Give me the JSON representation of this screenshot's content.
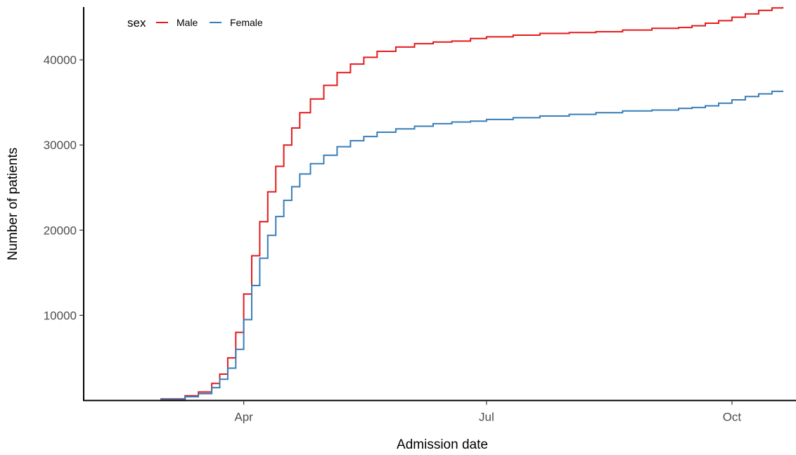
{
  "chart_data": {
    "type": "line",
    "step": true,
    "xlabel": "Admission date",
    "ylabel": "Number of patients",
    "x_tick_labels": [
      "Apr",
      "Jul",
      "Oct"
    ],
    "x_tick_dates": [
      "2020-04-01",
      "2020-07-01",
      "2020-10-01"
    ],
    "x_range": [
      "2020-02-01",
      "2020-10-25"
    ],
    "y_ticks": [
      10000,
      20000,
      30000,
      40000
    ],
    "y_tick_labels": [
      "10000",
      "20000",
      "30000",
      "40000"
    ],
    "ylim": [
      0,
      46200
    ],
    "grid": false,
    "legend": {
      "title": "sex",
      "position": "top-left",
      "entries": [
        "Male",
        "Female"
      ]
    },
    "series": [
      {
        "name": "Male",
        "color": "#e41a1c",
        "x": [
          "2020-02-15",
          "2020-03-01",
          "2020-03-10",
          "2020-03-15",
          "2020-03-20",
          "2020-03-23",
          "2020-03-26",
          "2020-03-29",
          "2020-04-01",
          "2020-04-04",
          "2020-04-07",
          "2020-04-10",
          "2020-04-13",
          "2020-04-16",
          "2020-04-19",
          "2020-04-22",
          "2020-04-26",
          "2020-05-01",
          "2020-05-06",
          "2020-05-11",
          "2020-05-16",
          "2020-05-21",
          "2020-05-28",
          "2020-06-04",
          "2020-06-11",
          "2020-06-18",
          "2020-06-25",
          "2020-07-01",
          "2020-07-11",
          "2020-07-21",
          "2020-08-01",
          "2020-08-11",
          "2020-08-21",
          "2020-09-01",
          "2020-09-11",
          "2020-09-16",
          "2020-09-21",
          "2020-09-26",
          "2020-10-01",
          "2020-10-06",
          "2020-10-11",
          "2020-10-16",
          "2020-10-20"
        ],
        "values": [
          0,
          180,
          550,
          1000,
          2000,
          3100,
          5000,
          8000,
          12500,
          17000,
          21000,
          24500,
          27500,
          30000,
          32000,
          33800,
          35400,
          37000,
          38500,
          39500,
          40300,
          41000,
          41500,
          41900,
          42100,
          42200,
          42500,
          42700,
          42900,
          43100,
          43200,
          43300,
          43500,
          43700,
          43800,
          44000,
          44300,
          44600,
          45000,
          45400,
          45800,
          46100,
          46200
        ]
      },
      {
        "name": "Female",
        "color": "#377eb8",
        "x": [
          "2020-02-15",
          "2020-03-01",
          "2020-03-10",
          "2020-03-15",
          "2020-03-20",
          "2020-03-23",
          "2020-03-26",
          "2020-03-29",
          "2020-04-01",
          "2020-04-04",
          "2020-04-07",
          "2020-04-10",
          "2020-04-13",
          "2020-04-16",
          "2020-04-19",
          "2020-04-22",
          "2020-04-26",
          "2020-05-01",
          "2020-05-06",
          "2020-05-11",
          "2020-05-16",
          "2020-05-21",
          "2020-05-28",
          "2020-06-04",
          "2020-06-11",
          "2020-06-18",
          "2020-06-25",
          "2020-07-01",
          "2020-07-11",
          "2020-07-21",
          "2020-08-01",
          "2020-08-11",
          "2020-08-21",
          "2020-09-01",
          "2020-09-11",
          "2020-09-16",
          "2020-09-21",
          "2020-09-26",
          "2020-10-01",
          "2020-10-06",
          "2020-10-11",
          "2020-10-16",
          "2020-10-20"
        ],
        "values": [
          0,
          130,
          450,
          800,
          1500,
          2500,
          3800,
          6000,
          9500,
          13500,
          16700,
          19400,
          21600,
          23500,
          25100,
          26600,
          27800,
          28800,
          29800,
          30500,
          31000,
          31500,
          31900,
          32200,
          32500,
          32700,
          32800,
          33000,
          33200,
          33400,
          33600,
          33800,
          34000,
          34100,
          34300,
          34400,
          34600,
          34900,
          35300,
          35700,
          36000,
          36300,
          36400
        ]
      }
    ]
  }
}
